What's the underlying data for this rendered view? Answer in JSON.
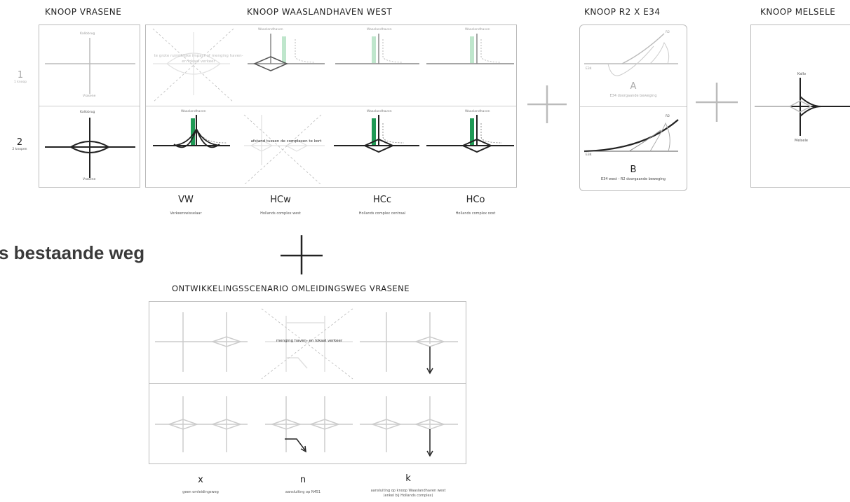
{
  "headers": {
    "vrasene": "KNOOP VRASENE",
    "waasland": "KNOOP WAASLANDHAVEN WEST",
    "r2e34": "KNOOP R2 X E34",
    "melsele": "KNOOP MELSELE"
  },
  "rows": [
    {
      "number": "1",
      "sub": "1 knoop"
    },
    {
      "number": "2",
      "sub": "2 knopen"
    }
  ],
  "vrasene_labels": {
    "top": "Kallobrug",
    "bottom": "Vrasene"
  },
  "waasland_label": "Waaslandhaven",
  "notes": {
    "impact": "te grote ruimtelijke impact of menging haven- en lokaal verkeer",
    "afstand": "afstand tussen de complexen te kort",
    "menging": "menging haven- en lokaal verkeer"
  },
  "columns": [
    {
      "code": "VW",
      "desc": "Verkeerswisselaar"
    },
    {
      "code": "HCw",
      "desc": "Hollands complex west"
    },
    {
      "code": "HCc",
      "desc": "Hollands complex centraal"
    },
    {
      "code": "HCo",
      "desc": "Hollands complex oost"
    }
  ],
  "r2e34": {
    "a_letter": "A",
    "a_desc": "E34 doorgaande beweging",
    "b_letter": "B",
    "b_desc": "E34 west - R2 doorgaande beweging",
    "e34": "E34",
    "r2": "R2"
  },
  "melsele_labels": {
    "top": "Kallo",
    "bottom": "Melsele"
  },
  "big_text": "s bestaande weg",
  "scenario": {
    "title": "ONTWIKKELINGSSCENARIO OMLEIDINGSWEG VRASENE",
    "columns": [
      {
        "code": "x",
        "desc": "geen omleidingsweg"
      },
      {
        "code": "n",
        "desc": "aansluiting op N451"
      },
      {
        "code": "k",
        "desc": "aansluiting op knoop Waaslandhaven west",
        "desc2": "(enkel bij Hollands complex)"
      }
    ]
  },
  "colors": {
    "accent_green": "#1f9a55",
    "light_green": "#bfe6cc",
    "line_dark": "#222222",
    "line_light": "#cccccc"
  }
}
